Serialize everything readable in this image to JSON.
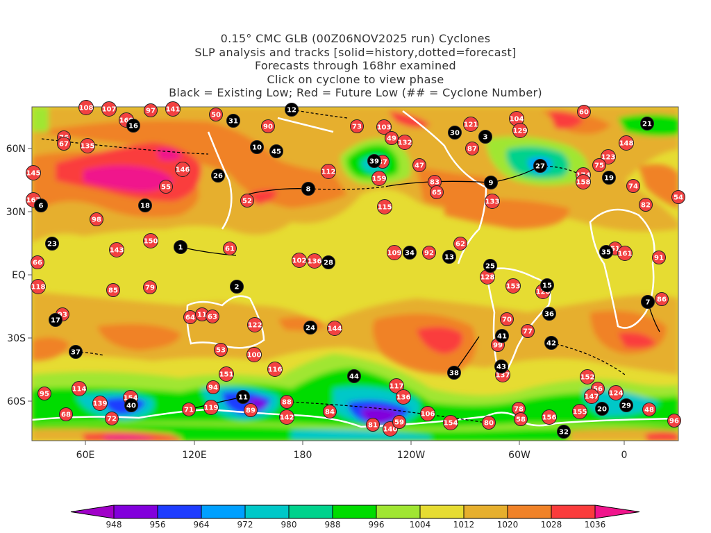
{
  "titles": [
    "0.15° CMC GLB (00Z06NOV2025 run) Cyclones",
    "SLP analysis and tracks [solid=history,dotted=forecast]",
    "Forecasts through 168hr examined",
    "Click on cyclone to view phase",
    "Black = Existing Low; Red = Future Low (## = Cyclone Number)"
  ],
  "axes": {
    "lon_labels": [
      "60E",
      "120E",
      "180",
      "120W",
      "60W",
      "0"
    ],
    "lat_labels": [
      "60N",
      "30N",
      "EQ",
      "30S",
      "60S"
    ]
  },
  "colorbar": {
    "levels": [
      "948",
      "956",
      "964",
      "972",
      "980",
      "988",
      "996",
      "1004",
      "1012",
      "1020",
      "1028",
      "1036"
    ],
    "colors": [
      "#a000c8",
      "#8200dc",
      "#1e3cff",
      "#00a0ff",
      "#00c8c8",
      "#00d28c",
      "#00dc00",
      "#a0e632",
      "#e6dc32",
      "#e6af2d",
      "#f08228",
      "#fa3c3c",
      "#f0148c"
    ]
  },
  "colors": {
    "existing": "#000000",
    "future": "#f24141"
  },
  "cyclones": [
    {
      "n": "108",
      "t": "future"
    },
    {
      "n": "107",
      "t": "future"
    },
    {
      "n": "169",
      "t": "future"
    },
    {
      "n": "97",
      "t": "future"
    },
    {
      "n": "141",
      "t": "future"
    },
    {
      "n": "50",
      "t": "future"
    },
    {
      "n": "90",
      "t": "future"
    },
    {
      "n": "76",
      "t": "future"
    },
    {
      "n": "67",
      "t": "future"
    },
    {
      "n": "135",
      "t": "future"
    },
    {
      "n": "145",
      "t": "future"
    },
    {
      "n": "146",
      "t": "future"
    },
    {
      "n": "55",
      "t": "future"
    },
    {
      "n": "52",
      "t": "future"
    },
    {
      "n": "112",
      "t": "future"
    },
    {
      "n": "167",
      "t": "future"
    },
    {
      "n": "98",
      "t": "future"
    },
    {
      "n": "150",
      "t": "future"
    },
    {
      "n": "143",
      "t": "future"
    },
    {
      "n": "61",
      "t": "future"
    },
    {
      "n": "102",
      "t": "future"
    },
    {
      "n": "136",
      "t": "future"
    },
    {
      "n": "66",
      "t": "future"
    },
    {
      "n": "16",
      "t": "existing"
    },
    {
      "n": "31",
      "t": "existing"
    },
    {
      "n": "12",
      "t": "existing"
    },
    {
      "n": "10",
      "t": "existing"
    },
    {
      "n": "45",
      "t": "existing"
    },
    {
      "n": "26",
      "t": "existing"
    },
    {
      "n": "8",
      "t": "existing"
    },
    {
      "n": "6",
      "t": "existing"
    },
    {
      "n": "18",
      "t": "existing"
    },
    {
      "n": "23",
      "t": "existing"
    },
    {
      "n": "1",
      "t": "existing"
    },
    {
      "n": "28",
      "t": "existing"
    },
    {
      "n": "73",
      "t": "future"
    },
    {
      "n": "103",
      "t": "future"
    },
    {
      "n": "49",
      "t": "future"
    },
    {
      "n": "132",
      "t": "future"
    },
    {
      "n": "121",
      "t": "future"
    },
    {
      "n": "104",
      "t": "future"
    },
    {
      "n": "129",
      "t": "future"
    },
    {
      "n": "60",
      "t": "future"
    },
    {
      "n": "87",
      "t": "future"
    },
    {
      "n": "47",
      "t": "future"
    },
    {
      "n": "37",
      "t": "future"
    },
    {
      "n": "159",
      "t": "future"
    },
    {
      "n": "83",
      "t": "future"
    },
    {
      "n": "65",
      "t": "future"
    },
    {
      "n": "133",
      "t": "future"
    },
    {
      "n": "115",
      "t": "future"
    },
    {
      "n": "123",
      "t": "future"
    },
    {
      "n": "75",
      "t": "future"
    },
    {
      "n": "174",
      "t": "future"
    },
    {
      "n": "158",
      "t": "future"
    },
    {
      "n": "148",
      "t": "future"
    },
    {
      "n": "74",
      "t": "future"
    },
    {
      "n": "82",
      "t": "future"
    },
    {
      "n": "54",
      "t": "future"
    },
    {
      "n": "62",
      "t": "future"
    },
    {
      "n": "109",
      "t": "future"
    },
    {
      "n": "92",
      "t": "future"
    },
    {
      "n": "51",
      "t": "future"
    },
    {
      "n": "161",
      "t": "future"
    },
    {
      "n": "91",
      "t": "future"
    },
    {
      "n": "30",
      "t": "existing"
    },
    {
      "n": "3",
      "t": "existing"
    },
    {
      "n": "39",
      "t": "existing"
    },
    {
      "n": "9",
      "t": "existing"
    },
    {
      "n": "27",
      "t": "existing"
    },
    {
      "n": "19",
      "t": "existing"
    },
    {
      "n": "21",
      "t": "existing"
    },
    {
      "n": "34",
      "t": "existing"
    },
    {
      "n": "13",
      "t": "existing"
    },
    {
      "n": "35",
      "t": "existing"
    },
    {
      "n": "25",
      "t": "existing"
    },
    {
      "n": "118",
      "t": "future"
    },
    {
      "n": "85",
      "t": "future"
    },
    {
      "n": "79",
      "t": "future"
    },
    {
      "n": "93",
      "t": "future"
    },
    {
      "n": "64",
      "t": "future"
    },
    {
      "n": "11",
      "t": "future"
    },
    {
      "n": "63",
      "t": "future"
    },
    {
      "n": "122",
      "t": "future"
    },
    {
      "n": "144",
      "t": "future"
    },
    {
      "n": "53",
      "t": "future"
    },
    {
      "n": "100",
      "t": "future"
    },
    {
      "n": "116",
      "t": "future"
    },
    {
      "n": "151",
      "t": "future"
    },
    {
      "n": "94",
      "t": "future"
    },
    {
      "n": "95",
      "t": "future"
    },
    {
      "n": "114",
      "t": "future"
    },
    {
      "n": "139",
      "t": "future"
    },
    {
      "n": "154",
      "t": "future"
    },
    {
      "n": "68",
      "t": "future"
    },
    {
      "n": "72",
      "t": "future"
    },
    {
      "n": "71",
      "t": "future"
    },
    {
      "n": "119",
      "t": "future"
    },
    {
      "n": "89",
      "t": "future"
    },
    {
      "n": "88",
      "t": "future"
    },
    {
      "n": "142",
      "t": "future"
    },
    {
      "n": "84",
      "t": "future"
    },
    {
      "n": "2",
      "t": "existing"
    },
    {
      "n": "17",
      "t": "existing"
    },
    {
      "n": "37",
      "t": "existing"
    },
    {
      "n": "24",
      "t": "existing"
    },
    {
      "n": "40",
      "t": "existing"
    },
    {
      "n": "11",
      "t": "existing"
    },
    {
      "n": "128",
      "t": "future"
    },
    {
      "n": "153",
      "t": "future"
    },
    {
      "n": "126",
      "t": "future"
    },
    {
      "n": "86",
      "t": "future"
    },
    {
      "n": "70",
      "t": "future"
    },
    {
      "n": "77",
      "t": "future"
    },
    {
      "n": "99",
      "t": "future"
    },
    {
      "n": "137",
      "t": "future"
    },
    {
      "n": "117",
      "t": "future"
    },
    {
      "n": "136",
      "t": "future"
    },
    {
      "n": "106",
      "t": "future"
    },
    {
      "n": "81",
      "t": "future"
    },
    {
      "n": "140",
      "t": "future"
    },
    {
      "n": "59",
      "t": "future"
    },
    {
      "n": "154",
      "t": "future"
    },
    {
      "n": "80",
      "t": "future"
    },
    {
      "n": "78",
      "t": "future"
    },
    {
      "n": "58",
      "t": "future"
    },
    {
      "n": "156",
      "t": "future"
    },
    {
      "n": "155",
      "t": "future"
    },
    {
      "n": "152",
      "t": "future"
    },
    {
      "n": "56",
      "t": "future"
    },
    {
      "n": "147",
      "t": "future"
    },
    {
      "n": "124",
      "t": "future"
    },
    {
      "n": "48",
      "t": "future"
    },
    {
      "n": "96",
      "t": "future"
    },
    {
      "n": "44",
      "t": "existing"
    },
    {
      "n": "38",
      "t": "existing"
    },
    {
      "n": "15",
      "t": "existing"
    },
    {
      "n": "7",
      "t": "existing"
    },
    {
      "n": "36",
      "t": "existing"
    },
    {
      "n": "41",
      "t": "existing"
    },
    {
      "n": "42",
      "t": "existing"
    },
    {
      "n": "43",
      "t": "existing"
    },
    {
      "n": "20",
      "t": "existing"
    },
    {
      "n": "29",
      "t": "existing"
    },
    {
      "n": "32",
      "t": "existing"
    }
  ]
}
